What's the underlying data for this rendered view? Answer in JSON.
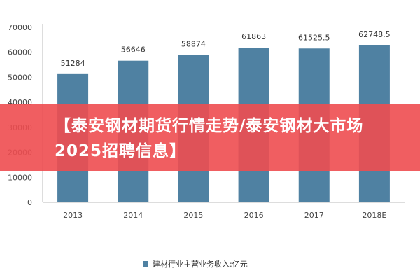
{
  "chart_data": {
    "type": "bar",
    "categories": [
      "2013",
      "2014",
      "2015",
      "2016",
      "2017",
      "2018E"
    ],
    "series": [
      {
        "name": "建材行业主营业务收入:亿元",
        "values": [
          51284,
          56646,
          58874,
          61863,
          61525.5,
          62748.5
        ],
        "value_labels": [
          "51284",
          "56646",
          "58874",
          "61863",
          "61525.5",
          "62748.5"
        ],
        "color": "#4f81a2"
      }
    ],
    "y_ticks": [
      0,
      10000,
      20000,
      30000,
      40000,
      50000,
      60000,
      70000
    ],
    "ylim": [
      0,
      70000
    ],
    "grid": false,
    "legend_position": "bottom-center"
  },
  "overlay": {
    "headline": "【泰安钢材期货行情走势/泰安钢材大市场2025招聘信息】",
    "background_color": "#ee4c50"
  }
}
